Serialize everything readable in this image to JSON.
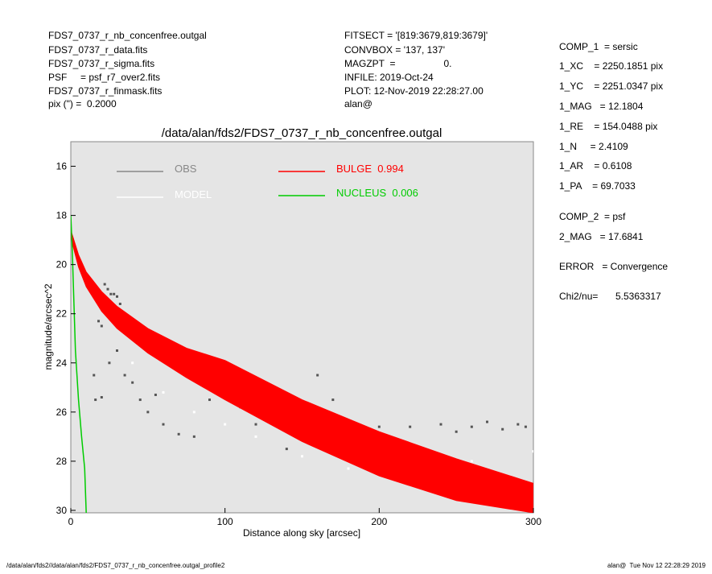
{
  "header": {
    "left": [
      "FDS7_0737_r_nb_concenfree.outgal",
      "FDS7_0737_r_data.fits",
      "FDS7_0737_r_sigma.fits",
      "PSF     = psf_r7_over2.fits",
      "FDS7_0737_r_finmask.fits",
      "pix (\") =  0.2000"
    ],
    "middle": [
      "FITSECT = '[819:3679,819:3679]'",
      "CONVBOX = '137, 137'",
      "MAGZPT  =                  0.",
      "INFILE: 2019-Oct-24",
      "PLOT: 12-Nov-2019 22:28:27.00",
      "alan@"
    ],
    "right": [
      "COMP_1  = sersic",
      "1_XC    = 2250.1851 pix",
      "1_YC    = 2251.0347 pix",
      "1_MAG   = 12.1804",
      "1_RE    = 154.0488 pix",
      "1_N     = 2.4109",
      "1_AR    = 0.6108",
      "1_PA    = 69.7033",
      "COMP_2  = psf",
      "2_MAG   = 17.6841",
      "ERROR   = Convergence"
    ],
    "chi2_label": "Chi2/nu=",
    "chi2_value": "5.5363317"
  },
  "footer": {
    "left": "/data/alan/fds2//data/alan/fds2/FDS7_0737_r_nb_concenfree.outgal_profile2",
    "right": "alan@  Tue Nov 12 22:28:29 2019"
  },
  "chart_data": {
    "type": "scatter",
    "title": "/data/alan/fds2/FDS7_0737_r_nb_concenfree.outgal",
    "x_label": "Distance along sky [arcsec]",
    "y_label": "magnitude/arcsec^2",
    "xlim": [
      0,
      300
    ],
    "xticks": [
      0,
      100,
      200,
      300
    ],
    "ylim": [
      30.1,
      15
    ],
    "yticks": [
      16,
      18,
      20,
      22,
      24,
      26,
      28,
      30
    ],
    "background": "#e5e5e5",
    "series": [
      {
        "name": "OBS",
        "type": "scatter",
        "color": "#555555",
        "legend_color": "#888888",
        "x": [
          22,
          24,
          26,
          28,
          30,
          32,
          25,
          29,
          18,
          20,
          15,
          16,
          20,
          25,
          30,
          35,
          40,
          45,
          50,
          55,
          60,
          70,
          80,
          90,
          100,
          110,
          120,
          130,
          150,
          170,
          180,
          200,
          220,
          240,
          250,
          260,
          270,
          280,
          290,
          295,
          160,
          140
        ],
        "values": [
          20.8,
          21.0,
          21.2,
          21.2,
          21.3,
          21.6,
          21.8,
          22.0,
          22.3,
          22.5,
          24.5,
          25.5,
          25.4,
          24.0,
          23.5,
          24.5,
          24.8,
          25.5,
          26.0,
          25.3,
          26.5,
          26.9,
          27.0,
          25.5,
          25.0,
          25.8,
          26.5,
          26.0,
          26.3,
          25.5,
          26.7,
          26.6,
          26.6,
          26.5,
          26.8,
          26.6,
          26.4,
          26.7,
          26.5,
          26.6,
          24.5,
          27.5
        ]
      },
      {
        "name": "MODEL",
        "type": "scatter",
        "color": "#ffffff",
        "legend_color": "#ffffff",
        "x": [
          40,
          60,
          80,
          100,
          120,
          150,
          180,
          210,
          240,
          270,
          290,
          130,
          170,
          230,
          260,
          300
        ],
        "values": [
          24.0,
          25.2,
          26.0,
          26.5,
          27.0,
          27.8,
          28.3,
          28.7,
          29.0,
          29.4,
          29.6,
          25.8,
          26.9,
          27.5,
          28.0,
          27.6
        ]
      },
      {
        "name": "BULGE  0.994",
        "type": "band",
        "color": "#ff0000",
        "legend_color": "#ff0000",
        "x": [
          0,
          5,
          10,
          20,
          30,
          50,
          75,
          100,
          150,
          200,
          250,
          300
        ],
        "values_low": [
          18.6,
          19.6,
          20.3,
          21.1,
          21.7,
          22.6,
          23.4,
          23.9,
          25.5,
          26.8,
          27.9,
          28.9
        ],
        "values_high": [
          18.9,
          20.1,
          20.9,
          21.9,
          22.6,
          23.6,
          24.6,
          25.5,
          27.2,
          28.6,
          29.6,
          30.1
        ]
      },
      {
        "name": "NUCLEUS  0.006",
        "type": "line",
        "color": "#00cc00",
        "legend_color": "#00cc00",
        "x": [
          0,
          1,
          2,
          3,
          5,
          7,
          9,
          10
        ],
        "values": [
          18.0,
          19.5,
          21.5,
          23.5,
          25.5,
          27.0,
          28.3,
          30.1
        ]
      }
    ]
  }
}
